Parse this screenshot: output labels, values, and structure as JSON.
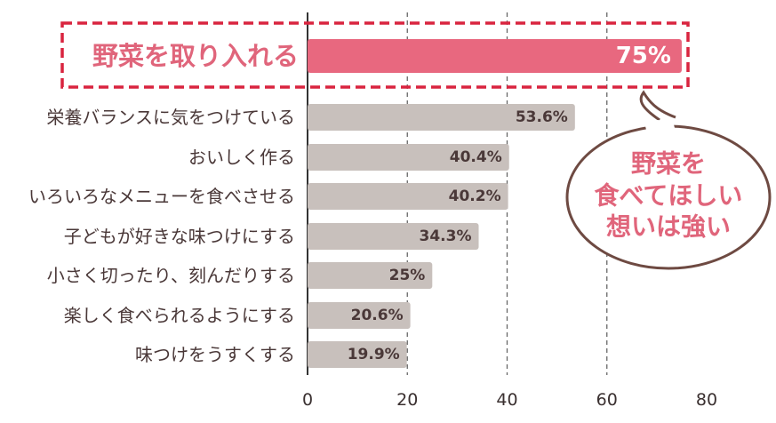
{
  "chart_data": {
    "type": "bar",
    "orientation": "horizontal",
    "categories": [
      "野菜を取り入れる",
      "栄養バランスに気をつけている",
      "おいしく作る",
      "いろいろなメニューを食べさせる",
      "子どもが好きな味つけにする",
      "小さく切ったり、刻んだりする",
      "楽しく食べられるようにする",
      "味つけをうすくする"
    ],
    "values": [
      75,
      53.6,
      40.4,
      40.2,
      34.3,
      25,
      20.6,
      19.9
    ],
    "value_labels": [
      "75%",
      "53.6%",
      "40.4%",
      "40.2%",
      "34.3%",
      "25%",
      "20.6%",
      "19.9%"
    ],
    "xlim": [
      0,
      80
    ],
    "xticks": [
      0,
      20,
      40,
      60,
      80
    ],
    "grid": "dashed vertical at 20, 40, 60",
    "highlight_index": 0,
    "colors": {
      "highlight": "#e8687f",
      "bar": "#c8c0bc",
      "frame": "#d9243f",
      "bubble_border": "#6e4a42",
      "bubble_text": "#e0657b"
    },
    "callout": [
      "野菜を",
      "食べてほしい",
      "想いは強い"
    ]
  }
}
